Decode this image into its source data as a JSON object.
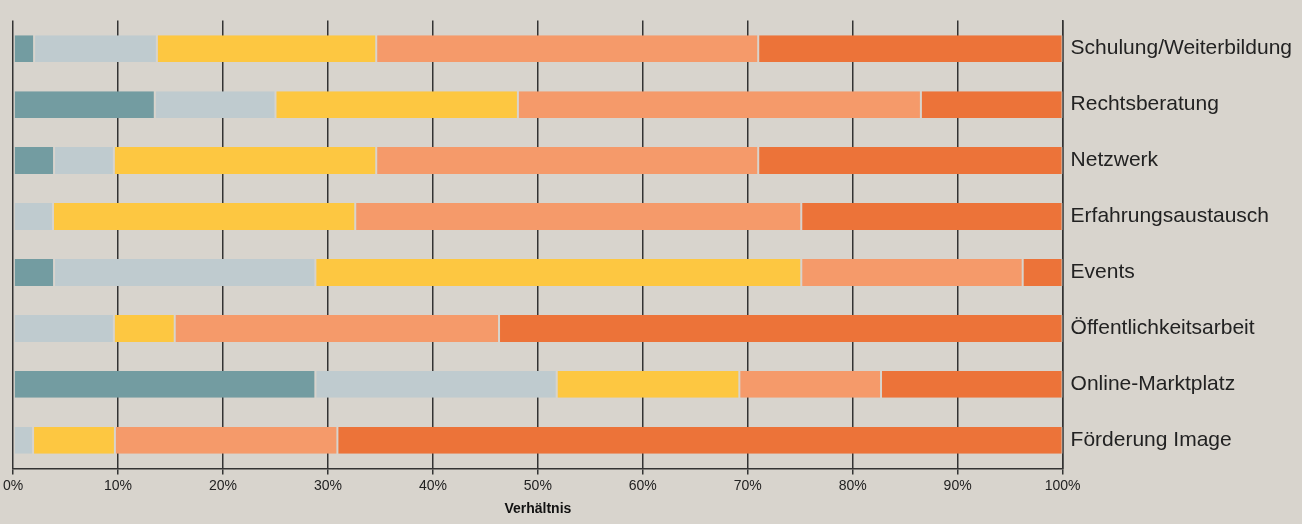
{
  "chart_data": {
    "type": "bar",
    "orientation": "horizontal",
    "stacked": true,
    "xlabel": "Verhältnis",
    "categories": [
      "Schulung/Weiterbildung",
      "Rechtsberatung",
      "Netzwerk",
      "Erfahrungsaustausch",
      "Events",
      "Öffentlichkeitsarbeit",
      "Online-Marktplatz",
      "Förderung Image"
    ],
    "series": [
      {
        "color": "#739ca1",
        "values": [
          2,
          13.5,
          3.9,
          0,
          3.9,
          0,
          28.8,
          0
        ]
      },
      {
        "color": "#bfcbcf",
        "values": [
          11.7,
          11.5,
          5.7,
          3.8,
          24.9,
          9.6,
          23.0,
          1.9
        ]
      },
      {
        "color": "#fdc741",
        "values": [
          20.9,
          23.1,
          25,
          28.8,
          46.3,
          5.8,
          17.4,
          7.8
        ]
      },
      {
        "color": "#f59a6a",
        "values": [
          36.4,
          38.4,
          36.4,
          42.5,
          21.1,
          30.9,
          13.5,
          21.2
        ]
      },
      {
        "color": "#ec7339",
        "values": [
          29.0,
          13.5,
          29.0,
          24.9,
          3.8,
          53.7,
          17.3,
          69.1
        ]
      }
    ],
    "xlim": [
      0,
      100
    ],
    "xticks": [
      {
        "value": 0,
        "label": "0%"
      },
      {
        "value": 10,
        "label": "10%"
      },
      {
        "value": 20,
        "label": "20%"
      },
      {
        "value": 30,
        "label": "30%"
      },
      {
        "value": 40,
        "label": "40%"
      },
      {
        "value": 50,
        "label": "50%"
      },
      {
        "value": 60,
        "label": "60%"
      },
      {
        "value": 70,
        "label": "70%"
      },
      {
        "value": 80,
        "label": "80%"
      },
      {
        "value": 90,
        "label": "90%"
      },
      {
        "value": 100,
        "label": "100%"
      }
    ],
    "grid": "x",
    "legend": false
  }
}
